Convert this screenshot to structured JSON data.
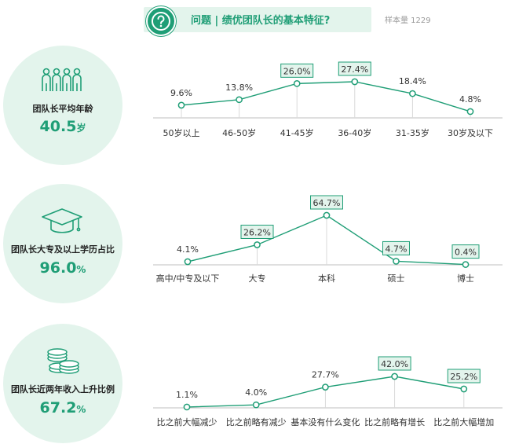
{
  "header": {
    "title": "问题 | 绩优团队长的基本特征?",
    "sample": "样本量 1229"
  },
  "colors": {
    "accent": "#1f9e76",
    "light": "#e3f4ec",
    "axis": "#bfbfbf"
  },
  "panels": [
    {
      "label": "团队长平均年龄",
      "value": "40.5",
      "unit": "岁",
      "icon": "people-icon"
    },
    {
      "label": "团队长大专及以上学历占比",
      "value": "96.0",
      "unit": "%",
      "icon": "graduation-cap-icon"
    },
    {
      "label": "团队长近两年收入上升比例",
      "value": "67.2",
      "unit": "%",
      "icon": "coins-icon"
    }
  ],
  "chart_data": [
    {
      "type": "line",
      "categories": [
        "50岁以上",
        "46-50岁",
        "41-45岁",
        "36-40岁",
        "31-35岁",
        "30岁及以下"
      ],
      "values": [
        9.6,
        13.8,
        26.0,
        27.4,
        18.4,
        4.8
      ],
      "labels": [
        "9.6%",
        "13.8%",
        "26.0%",
        "27.4%",
        "18.4%",
        "4.8%"
      ],
      "boxed": [
        false,
        false,
        true,
        true,
        false,
        false
      ],
      "ylim": [
        0,
        30
      ]
    },
    {
      "type": "line",
      "categories": [
        "高中/中专及以下",
        "大专",
        "本科",
        "硕士",
        "博士"
      ],
      "values": [
        4.1,
        26.2,
        64.7,
        4.7,
        0.4
      ],
      "labels": [
        "4.1%",
        "26.2%",
        "64.7%",
        "4.7%",
        "0.4%"
      ],
      "boxed": [
        false,
        true,
        true,
        true,
        true
      ],
      "ylim": [
        0,
        70
      ]
    },
    {
      "type": "line",
      "categories": [
        "比之前大幅减少",
        "比之前略有减少",
        "基本没有什么变化",
        "比之前略有增长",
        "比之前大幅增加"
      ],
      "values": [
        1.1,
        4.0,
        27.7,
        42.0,
        25.2
      ],
      "labels": [
        "1.1%",
        "4.0%",
        "27.7%",
        "42.0%",
        "25.2%"
      ],
      "boxed": [
        false,
        false,
        false,
        true,
        true
      ],
      "ylim": [
        0,
        45
      ]
    }
  ]
}
